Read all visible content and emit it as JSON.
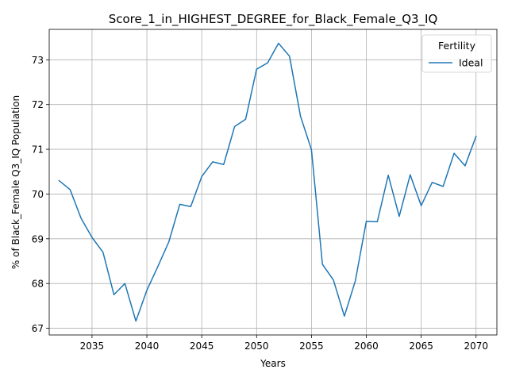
{
  "chart_data": {
    "type": "line",
    "title": "Score_1_in_HIGHEST_DEGREE_for_Black_Female_Q3_IQ",
    "xlabel": "Years",
    "ylabel": "% of Black_Female Q3_IQ Population",
    "xlim": [
      2031.1,
      2071.9
    ],
    "ylim": [
      66.85,
      73.68
    ],
    "x_ticks": [
      2035,
      2040,
      2045,
      2050,
      2055,
      2060,
      2065,
      2070
    ],
    "y_ticks": [
      67,
      68,
      69,
      70,
      71,
      72,
      73
    ],
    "grid": true,
    "legend": {
      "title": "Fertility",
      "placement": "top-right"
    },
    "series": [
      {
        "name": "Ideal",
        "color": "#1f77b4",
        "x": [
          2032,
          2033,
          2034,
          2035,
          2036,
          2037,
          2038,
          2039,
          2040,
          2041,
          2042,
          2043,
          2044,
          2045,
          2046,
          2047,
          2048,
          2049,
          2050,
          2051,
          2052,
          2053,
          2054,
          2055,
          2056,
          2057,
          2058,
          2059,
          2060,
          2061,
          2062,
          2063,
          2064,
          2065,
          2066,
          2067,
          2068,
          2069,
          2070
        ],
        "y": [
          70.3,
          70.1,
          69.46,
          69.03,
          68.7,
          67.75,
          68.0,
          67.16,
          67.85,
          68.38,
          68.93,
          69.77,
          69.72,
          70.39,
          70.72,
          70.66,
          71.51,
          71.67,
          72.79,
          72.93,
          73.37,
          73.08,
          71.74,
          70.99,
          68.43,
          68.08,
          67.27,
          68.06,
          69.39,
          69.38,
          70.42,
          69.5,
          70.43,
          69.74,
          70.26,
          70.17,
          70.91,
          70.63,
          71.29
        ]
      }
    ]
  }
}
